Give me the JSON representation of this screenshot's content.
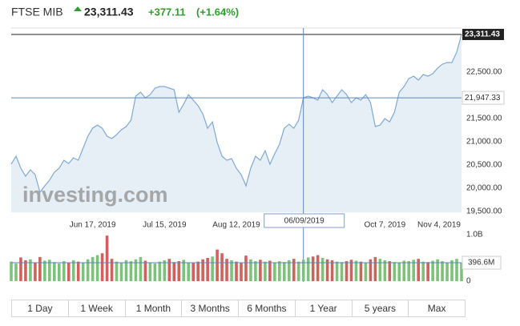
{
  "chart_data": {
    "type": "line",
    "title": "FTSE MIB",
    "price": "23,311.43",
    "change": "+377.11",
    "change_pct": "(+1.64%)",
    "watermark": "investing.com",
    "color": "#7fa9d3",
    "fill": "#e6eef6",
    "values": [
      20517,
      20690,
      20431,
      20259,
      20397,
      20293,
      19914,
      20052,
      20172,
      20345,
      20431,
      20603,
      20534,
      20655,
      20603,
      20862,
      21121,
      21293,
      21362,
      21293,
      21121,
      21069,
      21155,
      21259,
      21328,
      21466,
      21983,
      22069,
      21948,
      22017,
      22155,
      22190,
      22190,
      22155,
      22121,
      21638,
      21810,
      22017,
      21897,
      21776,
      21603,
      21293,
      21431,
      20983,
      20690,
      20603,
      20638,
      20431,
      20293,
      20052,
      20431,
      20690,
      20603,
      20810,
      20517,
      20741,
      20948,
      21293,
      21379,
      21293,
      21466,
      21947.33,
      21983,
      21948,
      21897,
      22121,
      22017,
      21845,
      21983,
      22121,
      22017,
      21845,
      21948,
      21897,
      22017,
      21845,
      21328,
      21362,
      21500,
      21431,
      21638,
      22069,
      22190,
      22362,
      22414,
      22328,
      22448,
      22414,
      22466,
      22586,
      22672,
      22707,
      22707,
      22931,
      23311.43
    ],
    "ylim": [
      19500,
      23450
    ],
    "yticks": [
      {
        "value": 19500,
        "label": "19,500.00"
      },
      {
        "value": 20000,
        "label": "20,000.00"
      },
      {
        "value": 20500,
        "label": "20,500.00"
      },
      {
        "value": 21000,
        "label": "21,000.00"
      },
      {
        "value": 21500,
        "label": "21,500.00"
      },
      {
        "value": 22500,
        "label": "22,500.00"
      }
    ],
    "xticks": [
      {
        "value": 17,
        "label": "Jun 17, 2019"
      },
      {
        "value": 32,
        "label": "Jul 15, 2019"
      },
      {
        "value": 47,
        "label": "Aug 12, 2019"
      },
      {
        "value": 78,
        "label": "Oct 7, 2019"
      },
      {
        "value": 93,
        "label": "Nov 4, 2019"
      }
    ],
    "last_label": "23,311.43",
    "crosshair": {
      "index": 61,
      "x_label": "06/09/2019",
      "y_label": "21,947.33"
    },
    "volume": {
      "values": [
        420,
        380,
        510,
        450,
        470,
        390,
        520,
        440,
        460,
        410,
        380,
        430,
        400,
        450,
        420,
        390,
        470,
        520,
        560,
        600,
        980,
        480,
        420,
        400,
        450,
        430,
        470,
        520,
        440,
        400,
        380,
        420,
        450,
        480,
        410,
        430,
        460,
        400,
        390,
        420,
        470,
        500,
        530,
        680,
        600,
        480,
        450,
        420,
        400,
        550,
        470,
        430,
        460,
        420,
        440,
        400,
        430,
        410,
        450,
        480,
        420,
        460,
        510,
        530,
        560,
        500,
        470,
        450,
        420,
        410,
        430,
        460,
        440,
        420,
        400,
        470,
        520,
        480,
        450,
        430,
        410,
        400,
        440,
        430,
        460,
        480,
        420,
        410,
        440,
        470,
        430,
        400,
        450,
        480,
        396.6
      ],
      "ylim": [
        0,
        1000
      ],
      "yticks": [
        {
          "value": 1000,
          "label": "1.0B"
        },
        0
      ],
      "last_label": "396.6M",
      "up_color": "#7cc27a",
      "down_color": "#cf625d"
    },
    "ranges": [
      "1 Day",
      "1 Week",
      "1 Month",
      "3 Months",
      "6 Months",
      "1 Year",
      "5 years",
      "Max"
    ]
  }
}
